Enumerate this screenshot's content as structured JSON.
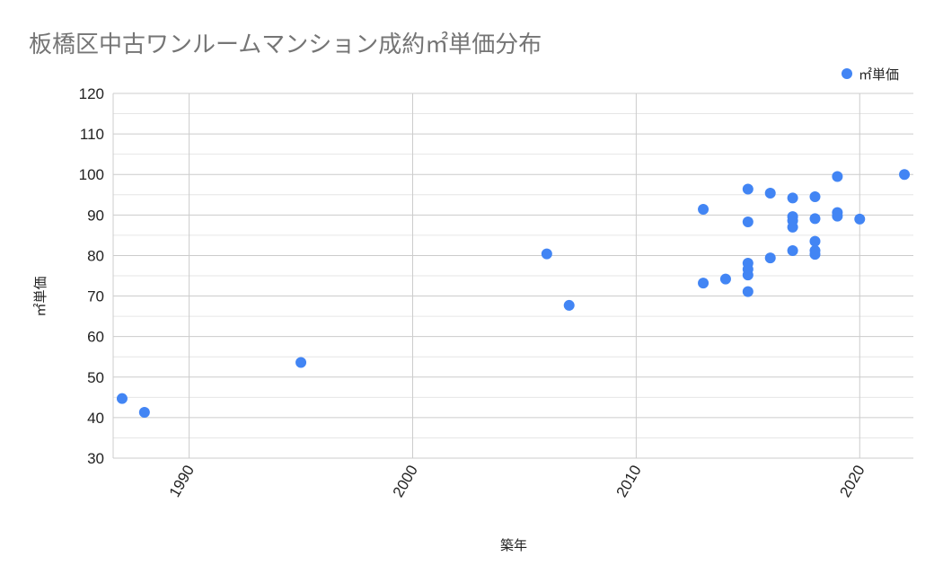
{
  "chart_data": {
    "type": "scatter",
    "title": "板橋区中古ワンルームマンション成約㎡単価分布",
    "xlabel": "築年",
    "ylabel": "㎡単価",
    "xlim": [
      1986.6,
      2022.4
    ],
    "ylim": [
      30,
      120
    ],
    "xticks": [
      1990,
      2000,
      2010,
      2020
    ],
    "yticks": [
      30,
      40,
      50,
      60,
      70,
      80,
      90,
      100,
      110,
      120
    ],
    "grid": true,
    "legend_position": "top-right",
    "series": [
      {
        "name": "㎡単価",
        "color": "#4285f4",
        "points": [
          [
            1987,
            44.7
          ],
          [
            1988,
            41.3
          ],
          [
            1995,
            53.6
          ],
          [
            2006,
            80.4
          ],
          [
            2007,
            67.7
          ],
          [
            2013,
            91.4
          ],
          [
            2013,
            73.2
          ],
          [
            2014,
            74.2
          ],
          [
            2015,
            96.4
          ],
          [
            2015,
            88.3
          ],
          [
            2015,
            78.1
          ],
          [
            2015,
            76.6
          ],
          [
            2015,
            75.2
          ],
          [
            2015,
            71.1
          ],
          [
            2016,
            95.4
          ],
          [
            2016,
            79.4
          ],
          [
            2017,
            94.2
          ],
          [
            2017,
            89.6
          ],
          [
            2017,
            88.6
          ],
          [
            2017,
            87.0
          ],
          [
            2017,
            81.2
          ],
          [
            2018,
            94.5
          ],
          [
            2018,
            89.1
          ],
          [
            2018,
            83.5
          ],
          [
            2018,
            81.2
          ],
          [
            2018,
            80.3
          ],
          [
            2019,
            99.5
          ],
          [
            2019,
            90.6
          ],
          [
            2019,
            89.7
          ],
          [
            2020,
            89.0
          ],
          [
            2022,
            100.0
          ]
        ]
      }
    ]
  }
}
